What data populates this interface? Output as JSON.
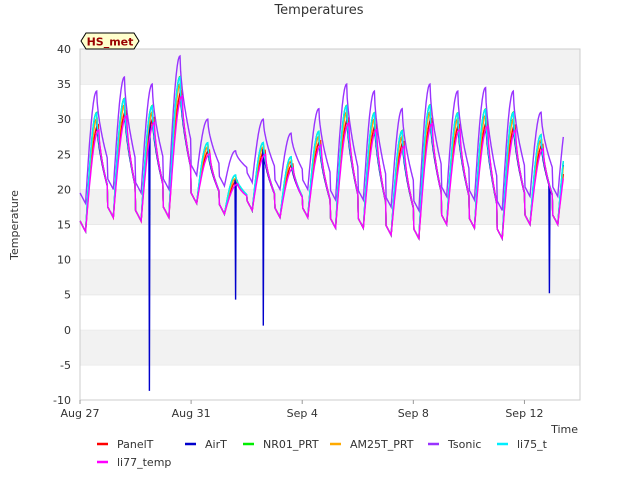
{
  "chart_data": {
    "type": "line",
    "title": "Temperatures",
    "badge": "HS_met",
    "xlabel": "Time",
    "ylabel": "Temperature",
    "ylim": [
      -10,
      40
    ],
    "yticks": [
      -10,
      -5,
      0,
      5,
      10,
      15,
      20,
      25,
      30,
      35,
      40
    ],
    "xlim": [
      0,
      18
    ],
    "xticks": [
      {
        "day": 0,
        "label": "Aug 27"
      },
      {
        "day": 4,
        "label": "Aug 31"
      },
      {
        "day": 8,
        "label": "Sep 4"
      },
      {
        "day": 12,
        "label": "Sep 8"
      },
      {
        "day": 16,
        "label": "Sep 12"
      }
    ],
    "daily_min": [
      14.0,
      16.0,
      15.5,
      16.0,
      18.0,
      16.5,
      17.0,
      16.0,
      16.0,
      14.5,
      14.5,
      13.5,
      13.0,
      15.0,
      14.5,
      13.0,
      15.0,
      15.5
    ],
    "daily_max": [
      30.0,
      32.0,
      31.0,
      35.0,
      26.0,
      21.5,
      26.0,
      24.0,
      27.5,
      31.0,
      30.0,
      27.5,
      31.0,
      30.0,
      30.5,
      30.0,
      27.0
    ],
    "series": [
      {
        "name": "PanelT",
        "color": "#ff0000",
        "offset": 0.0,
        "amp": 0.95,
        "lag": 0.06
      },
      {
        "name": "AirT",
        "color": "#0000cc",
        "offset": 0.0,
        "amp": 1.0,
        "lag": 0.0,
        "spikes": [
          {
            "day": 2.5,
            "value": -8.7
          },
          {
            "day": 5.6,
            "value": 4.3
          },
          {
            "day": 6.6,
            "value": 0.6
          },
          {
            "day": 16.9,
            "value": 5.2
          }
        ]
      },
      {
        "name": "NR01_PRT",
        "color": "#00ee00",
        "offset": 0.3,
        "amp": 1.04,
        "lag": 0.0
      },
      {
        "name": "AM25T_PRT",
        "color": "#ffaa00",
        "offset": 0.1,
        "amp": 1.0,
        "lag": 0.02
      },
      {
        "name": "Tsonic",
        "color": "#9933ff",
        "offset": 4.0,
        "amp": 1.0,
        "lag": 0.0,
        "min_boost": 4.0
      },
      {
        "name": "li75_t",
        "color": "#00eeff",
        "offset": 0.4,
        "amp": 1.03,
        "lag": 0.0
      },
      {
        "name": "li77_temp",
        "color": "#ff00ff",
        "offset": -0.4,
        "amp": 0.93,
        "lag": 0.08
      }
    ]
  }
}
